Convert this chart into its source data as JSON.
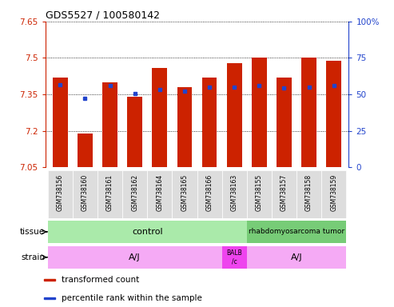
{
  "title": "GDS5527 / 100580142",
  "samples": [
    "GSM738156",
    "GSM738160",
    "GSM738161",
    "GSM738162",
    "GSM738164",
    "GSM738165",
    "GSM738166",
    "GSM738163",
    "GSM738155",
    "GSM738157",
    "GSM738158",
    "GSM738159"
  ],
  "bar_values": [
    7.42,
    7.19,
    7.4,
    7.34,
    7.46,
    7.38,
    7.42,
    7.48,
    7.5,
    7.42,
    7.5,
    7.49
  ],
  "dot_values": [
    7.39,
    7.335,
    7.385,
    7.355,
    7.37,
    7.365,
    7.38,
    7.38,
    7.385,
    7.375,
    7.38,
    7.385
  ],
  "ymin": 7.05,
  "ymax": 7.65,
  "yticks": [
    7.05,
    7.2,
    7.35,
    7.5,
    7.65
  ],
  "ytick_labels": [
    "7.05",
    "7.2",
    "7.35",
    "7.5",
    "7.65"
  ],
  "y2min": 0,
  "y2max": 100,
  "y2ticks": [
    0,
    25,
    50,
    75,
    100
  ],
  "y2tick_labels": [
    "0",
    "25",
    "50",
    "75",
    "100%"
  ],
  "bar_color": "#cc2200",
  "dot_color": "#2244cc",
  "tissue_control_color": "#aaeaaa",
  "tissue_tumor_color": "#77cc77",
  "strain_aj_color": "#f5aaf5",
  "strain_balb_color": "#ee44ee",
  "left_axis_color": "#cc2200",
  "right_axis_color": "#2244cc",
  "sample_box_color": "#dddddd",
  "tissue_row_label": "tissue",
  "strain_row_label": "strain",
  "legend_items": [
    {
      "color": "#cc2200",
      "label": "transformed count"
    },
    {
      "color": "#2244cc",
      "label": "percentile rank within the sample"
    }
  ]
}
